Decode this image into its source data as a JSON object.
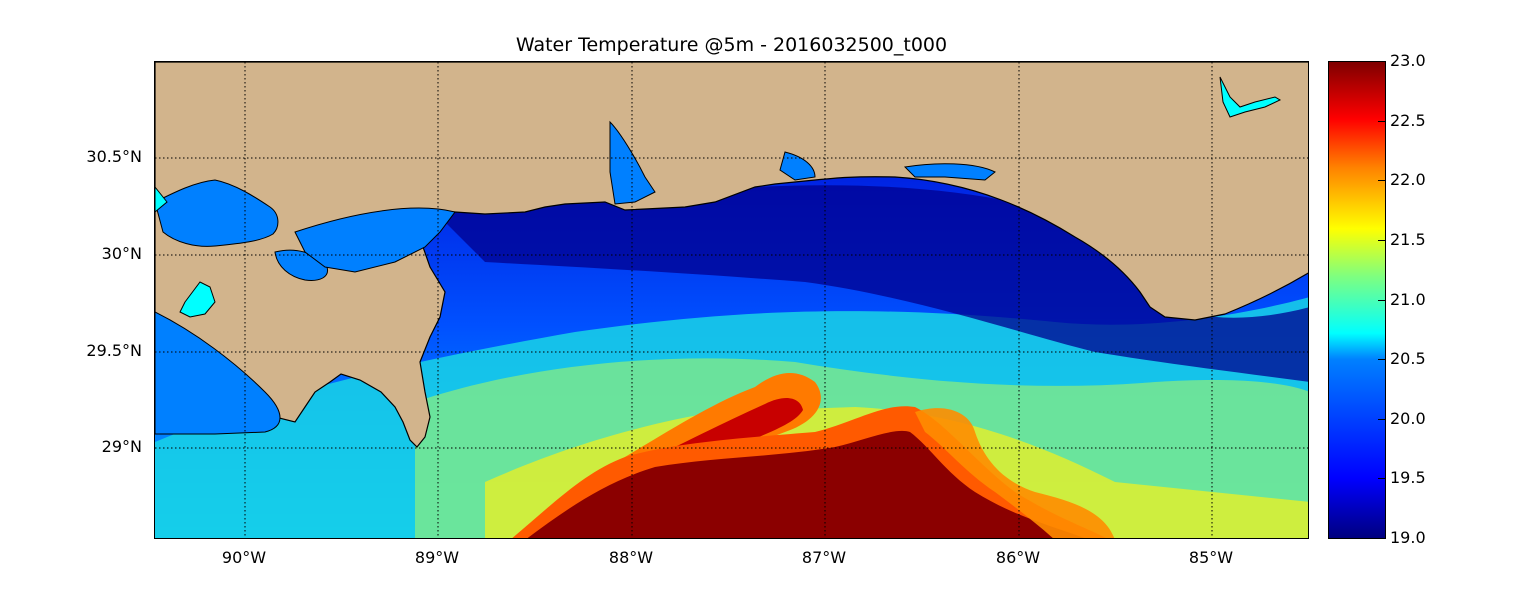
{
  "title": "Water Temperature @5m - 2016032500_t000",
  "latitude_labels": [
    "30.5°N",
    "30°N",
    "29.5°N",
    "29°N"
  ],
  "longitude_labels": [
    "90°W",
    "89°W",
    "88°W",
    "87°W",
    "86°W",
    "85°W"
  ],
  "colorbar": {
    "min": 19.0,
    "max": 23.0,
    "ticks": [
      "23.0",
      "22.5",
      "22.0",
      "21.5",
      "21.0",
      "20.5",
      "20.0",
      "19.5",
      "19.0"
    ],
    "colormap": "jet"
  },
  "colors": {
    "land": "#d2b48c",
    "coast": "#000000",
    "grid": "#000000",
    "inland_water": "#0080ff",
    "lake": "#00ffff"
  }
}
